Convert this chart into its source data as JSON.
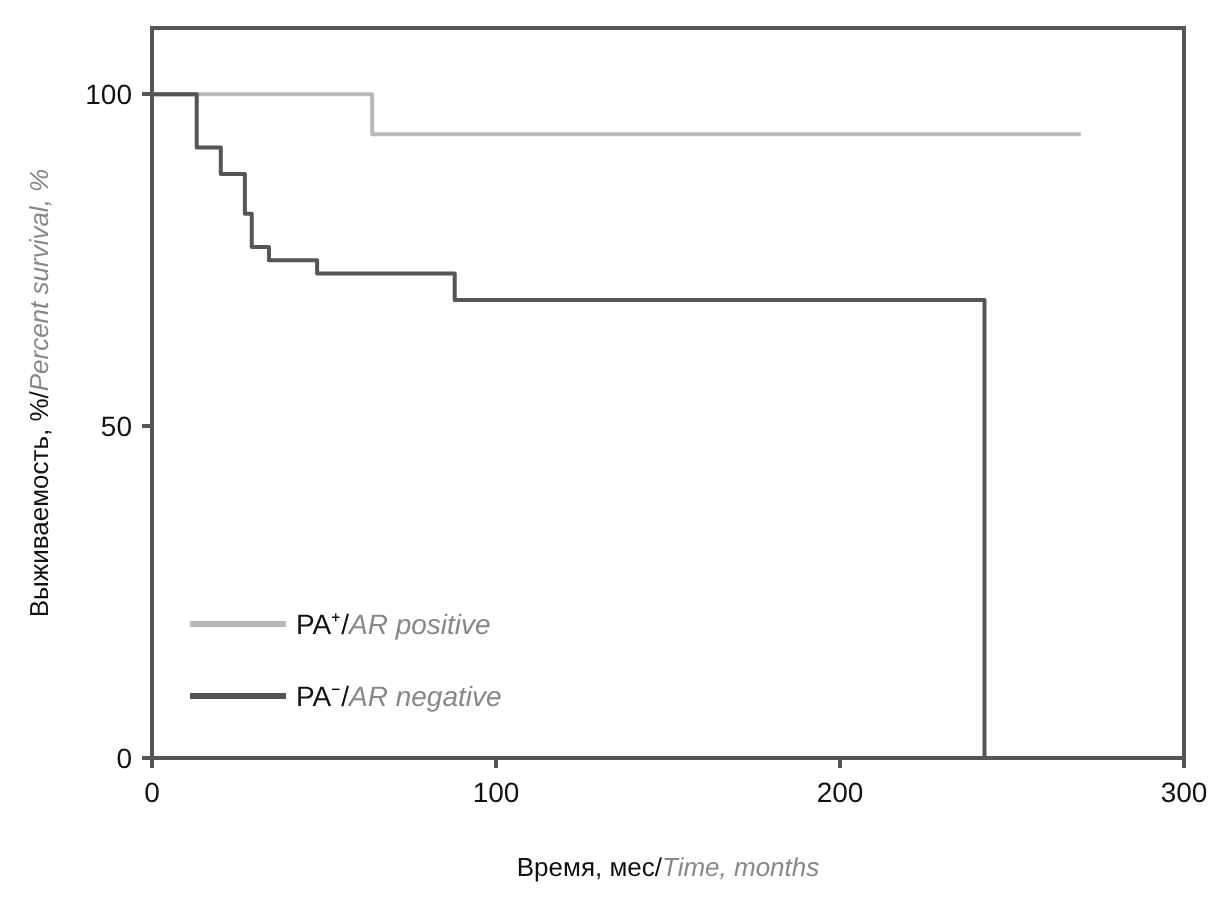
{
  "chart_data": {
    "type": "step",
    "xlabel": "Время, мес/Time, months",
    "ylabel": "Выживаемость, %/Percent survival, %",
    "xlim": [
      0,
      300
    ],
    "xticks": [
      0,
      100,
      200,
      300
    ],
    "ylim": [
      0,
      110
    ],
    "yticks": [
      0,
      50,
      100
    ],
    "grid": false,
    "legend": "bottom left",
    "marker": "none",
    "line_style": "solid",
    "series": [
      {
        "name": "PA⁺/AR positive",
        "color": "#b8b8b8",
        "x": [
          0,
          64,
          270
        ],
        "values": [
          100,
          94,
          94
        ]
      },
      {
        "name": "PA⁻/AR negative",
        "color": "#555555",
        "x": [
          0,
          13,
          20,
          27,
          29,
          34,
          48,
          88,
          242
        ],
        "values": [
          100,
          92,
          88,
          82,
          77,
          75,
          73,
          69,
          0
        ]
      }
    ]
  }
}
